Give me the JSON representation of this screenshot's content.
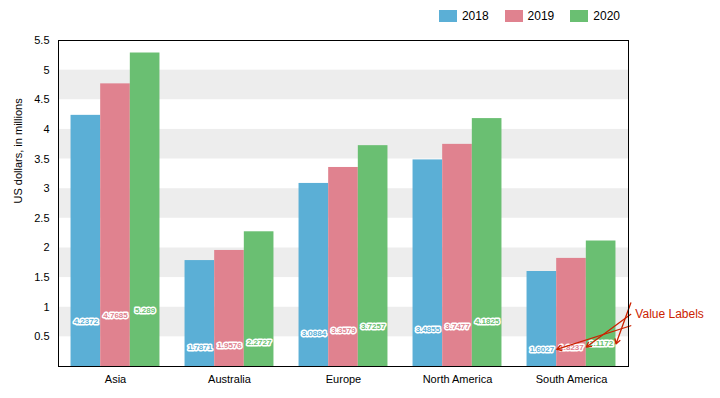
{
  "chart_data": {
    "type": "bar",
    "categories": [
      "Asia",
      "Australia",
      "Europe",
      "North America",
      "South America"
    ],
    "series": [
      {
        "name": "2018",
        "color": "#5bafd6",
        "values": [
          4.2372,
          1.7871,
          3.0884,
          3.4855,
          1.6027
        ]
      },
      {
        "name": "2019",
        "color": "#e0828f",
        "values": [
          4.7685,
          1.9576,
          3.3579,
          3.7477,
          1.8237
        ]
      },
      {
        "name": "2020",
        "color": "#6abf72",
        "values": [
          5.289,
          2.2727,
          3.7257,
          4.1825,
          2.1172
        ]
      }
    ],
    "ylabel": "US dollars, in millions",
    "ylim": [
      0,
      5.5
    ],
    "yticks": [
      0.5,
      1,
      1.5,
      2,
      2.5,
      3,
      3.5,
      4,
      4.5,
      5,
      5.5
    ],
    "grid": true,
    "legend": "upper right",
    "data_labels": true,
    "annotation": "Value Labels"
  }
}
